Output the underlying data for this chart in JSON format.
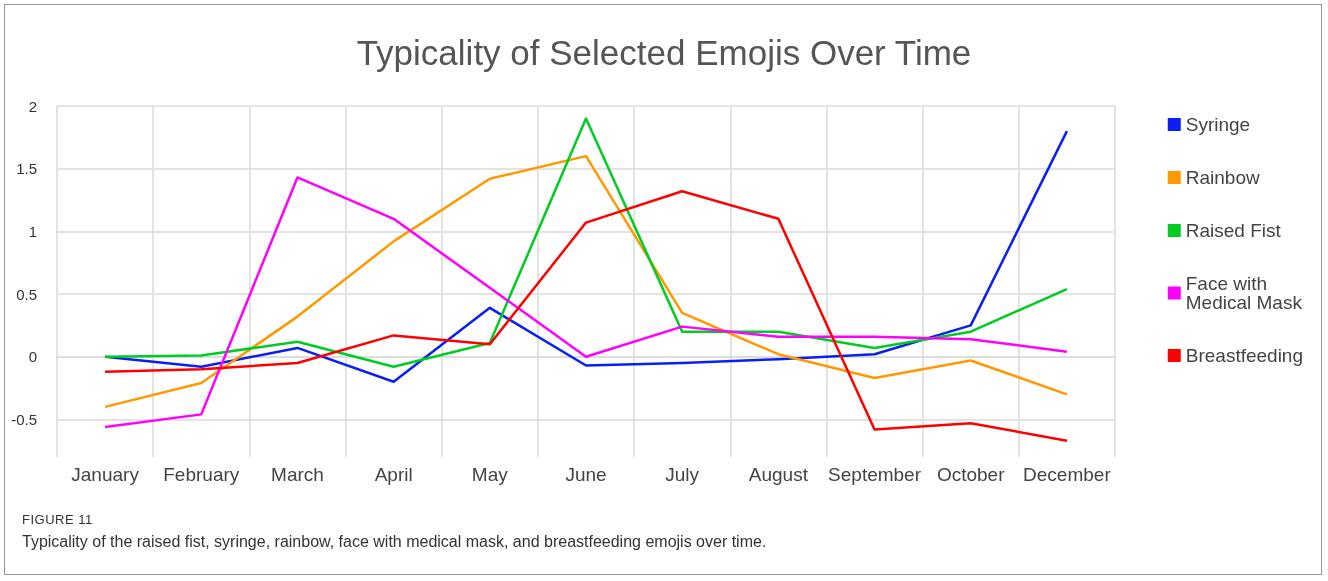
{
  "chart_data": {
    "type": "line",
    "title": "Typicality of Selected Emojis Over Time",
    "categories": [
      "January",
      "February",
      "March",
      "April",
      "May",
      "June",
      "July",
      "August",
      "September",
      "October",
      "December"
    ],
    "series": [
      {
        "name": "Syringe",
        "color": "#0a1ff5",
        "values": [
          0,
          -0.08,
          0.07,
          -0.2,
          0.39,
          -0.07,
          -0.05,
          -0.02,
          0.02,
          0.25,
          1.8
        ]
      },
      {
        "name": "Rainbow",
        "color": "#ff9900",
        "values": [
          -0.4,
          -0.21,
          0.32,
          0.92,
          1.42,
          1.6,
          0.35,
          0.02,
          -0.17,
          -0.03,
          -0.3
        ]
      },
      {
        "name": "Raised Fist",
        "color": "#00cc22",
        "values": [
          0,
          0.01,
          0.12,
          -0.08,
          0.11,
          1.9,
          0.2,
          0.2,
          0.07,
          0.2,
          0.54
        ]
      },
      {
        "name": "Face with Medical Mask",
        "color": "#ff00ff",
        "values": [
          -0.56,
          -0.46,
          1.43,
          1.1,
          0.55,
          0,
          0.24,
          0.16,
          0.16,
          0.14,
          0.04
        ]
      },
      {
        "name": "Breastfeeding",
        "color": "#ff0000",
        "values": [
          -0.12,
          -0.1,
          -0.05,
          0.17,
          0.1,
          1.07,
          1.32,
          1.1,
          -0.58,
          -0.53,
          -0.67
        ]
      }
    ],
    "ylim": [
      -0.8,
      2
    ],
    "yticks": [
      -0.5,
      0,
      0.5,
      1,
      1.5,
      2
    ],
    "grid": true,
    "legend": "right",
    "marker": "none",
    "line_style": "solid",
    "annotations": [
      "FIGURE 11",
      "Typicality of the raised fist, syringe, rainbow, face with medical mask, and breastfeeding emojis over time."
    ]
  }
}
